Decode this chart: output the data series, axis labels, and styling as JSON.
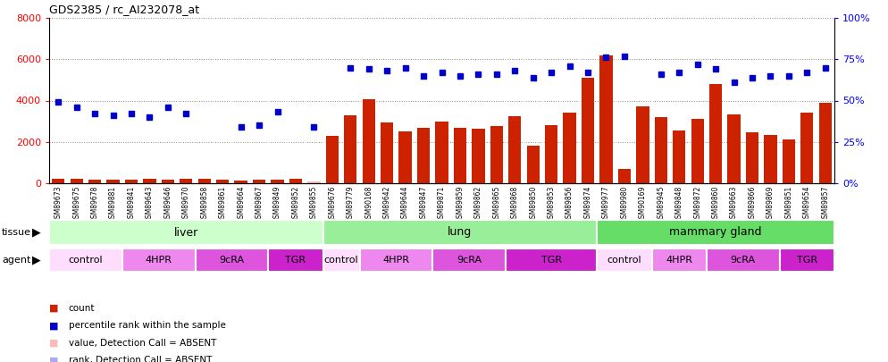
{
  "title": "GDS2385 / rc_AI232078_at",
  "samples": [
    "GSM89673",
    "GSM89675",
    "GSM89678",
    "GSM89881",
    "GSM89841",
    "GSM89643",
    "GSM89646",
    "GSM89670",
    "GSM89858",
    "GSM89861",
    "GSM89664",
    "GSM89867",
    "GSM89849",
    "GSM89852",
    "GSM89855",
    "GSM89676",
    "GSM89779",
    "GSM90168",
    "GSM89642",
    "GSM89644",
    "GSM89847",
    "GSM89871",
    "GSM89859",
    "GSM89862",
    "GSM89865",
    "GSM89868",
    "GSM89850",
    "GSM89853",
    "GSM89856",
    "GSM89874",
    "GSM89977",
    "GSM89980",
    "GSM90169",
    "GSM89945",
    "GSM89848",
    "GSM89872",
    "GSM89860",
    "GSM89663",
    "GSM89866",
    "GSM89869",
    "GSM89851",
    "GSM89654",
    "GSM89857"
  ],
  "bar_values": [
    200,
    220,
    180,
    160,
    190,
    210,
    170,
    220,
    200,
    160,
    150,
    170,
    180,
    200,
    80,
    2300,
    3300,
    4050,
    2950,
    2500,
    2700,
    3000,
    2700,
    2650,
    2750,
    3250,
    1800,
    2800,
    3400,
    5100,
    6200,
    700,
    3700,
    3200,
    2550,
    3100,
    4800,
    3350,
    2450,
    2350,
    2100,
    3400,
    3900
  ],
  "dot_values": [
    49,
    46,
    42,
    41,
    42,
    40,
    46,
    42,
    null,
    null,
    34,
    35,
    43,
    null,
    34,
    null,
    70,
    69,
    68,
    70,
    65,
    67,
    65,
    66,
    66,
    68,
    64,
    67,
    71,
    67,
    76,
    77,
    null,
    66,
    67,
    72,
    69,
    61,
    64,
    65,
    65,
    67,
    70
  ],
  "absent_bar": [
    false,
    false,
    false,
    false,
    false,
    false,
    false,
    false,
    false,
    false,
    false,
    false,
    false,
    false,
    true,
    false,
    false,
    false,
    false,
    false,
    false,
    false,
    false,
    false,
    false,
    false,
    false,
    false,
    false,
    false,
    false,
    false,
    false,
    false,
    false,
    false,
    false,
    false,
    false,
    false,
    false,
    false,
    false
  ],
  "absent_dot": [
    false,
    false,
    false,
    false,
    false,
    false,
    false,
    false,
    true,
    true,
    false,
    false,
    false,
    true,
    false,
    true,
    false,
    false,
    false,
    false,
    false,
    false,
    false,
    false,
    false,
    false,
    false,
    false,
    false,
    false,
    false,
    false,
    true,
    false,
    false,
    false,
    false,
    false,
    false,
    false,
    false,
    false,
    false
  ],
  "tissue_groups": [
    {
      "label": "liver",
      "start": 0,
      "end": 15,
      "color": "#ccffcc"
    },
    {
      "label": "lung",
      "start": 15,
      "end": 30,
      "color": "#99ee99"
    },
    {
      "label": "mammary gland",
      "start": 30,
      "end": 43,
      "color": "#66dd66"
    }
  ],
  "agent_groups": [
    {
      "label": "control",
      "start": 0,
      "end": 4,
      "color": "#ffddff"
    },
    {
      "label": "4HPR",
      "start": 4,
      "end": 8,
      "color": "#ee88ee"
    },
    {
      "label": "9cRA",
      "start": 8,
      "end": 12,
      "color": "#dd55dd"
    },
    {
      "label": "TGR",
      "start": 12,
      "end": 15,
      "color": "#cc22cc"
    },
    {
      "label": "control",
      "start": 15,
      "end": 17,
      "color": "#ffddff"
    },
    {
      "label": "4HPR",
      "start": 17,
      "end": 21,
      "color": "#ee88ee"
    },
    {
      "label": "9cRA",
      "start": 21,
      "end": 25,
      "color": "#dd55dd"
    },
    {
      "label": "TGR",
      "start": 25,
      "end": 30,
      "color": "#cc22cc"
    },
    {
      "label": "control",
      "start": 30,
      "end": 33,
      "color": "#ffddff"
    },
    {
      "label": "4HPR",
      "start": 33,
      "end": 36,
      "color": "#ee88ee"
    },
    {
      "label": "9cRA",
      "start": 36,
      "end": 40,
      "color": "#dd55dd"
    },
    {
      "label": "TGR",
      "start": 40,
      "end": 43,
      "color": "#cc22cc"
    }
  ],
  "bar_color": "#cc2200",
  "absent_bar_color": "#ffbbbb",
  "dot_color": "#0000cc",
  "absent_dot_color": "#aaaaee",
  "ylim_left": [
    0,
    8000
  ],
  "ylim_right": [
    0,
    100
  ],
  "yticks_left": [
    0,
    2000,
    4000,
    6000,
    8000
  ],
  "yticks_right": [
    0,
    25,
    50,
    75,
    100
  ],
  "background_color": "#ffffff",
  "grid_color": "#888888"
}
